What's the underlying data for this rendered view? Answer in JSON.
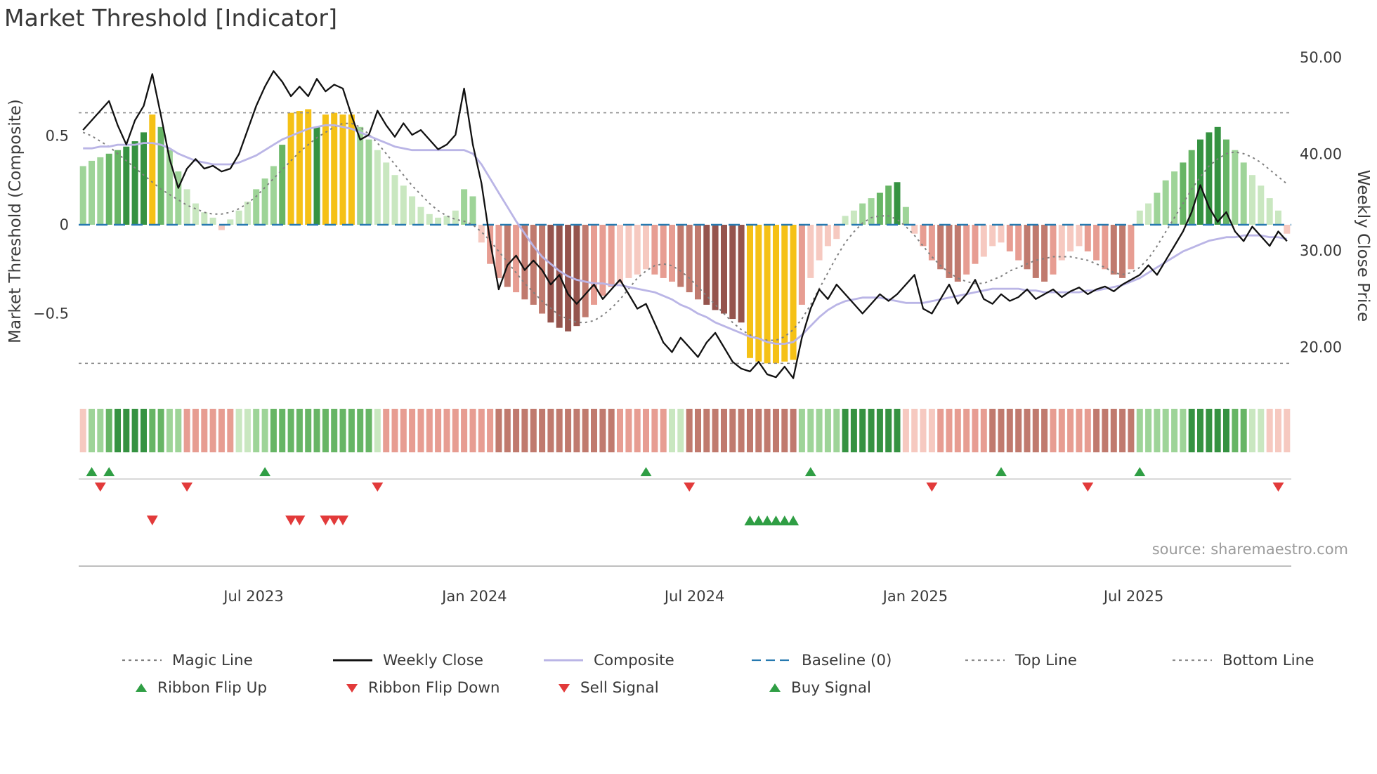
{
  "title": "Market Threshold [Indicator]",
  "source": "source: sharemaestro.com",
  "axes": {
    "left_label": "Market Threshold (Composite)",
    "right_label": "Weekly Close Price",
    "left_ticks": [
      {
        "label": "0.5",
        "value": 0.5
      },
      {
        "label": "0",
        "value": 0
      },
      {
        "label": "−0.5",
        "value": -0.5
      }
    ],
    "right_ticks": [
      {
        "label": "50.00",
        "value": 50
      },
      {
        "label": "40.00",
        "value": 40
      },
      {
        "label": "30.00",
        "value": 30
      },
      {
        "label": "20.00",
        "value": 20
      }
    ]
  },
  "legend": {
    "row1": [
      {
        "label": "Magic Line",
        "type": "dashed",
        "color": "#7f7f7f"
      },
      {
        "label": "Weekly Close",
        "type": "solid",
        "color": "#111111"
      },
      {
        "label": "Composite",
        "type": "solid",
        "color": "#bab5e6"
      },
      {
        "label": "Baseline (0)",
        "type": "dashed-long",
        "color": "#2679b0"
      },
      {
        "label": "Top Line",
        "type": "dashed",
        "color": "#8c8c8c"
      },
      {
        "label": "Bottom Line",
        "type": "dashed",
        "color": "#8c8c8c"
      }
    ],
    "row2": [
      {
        "label": "Ribbon Flip Up",
        "marker": "up",
        "color": "#2f9e44"
      },
      {
        "label": "Ribbon Flip Down",
        "marker": "down",
        "color": "#e23a3a"
      },
      {
        "label": "Sell Signal",
        "marker": "down",
        "color": "#e23a3a"
      },
      {
        "label": "Buy Signal",
        "marker": "up",
        "color": "#2f9e44"
      }
    ]
  },
  "colors": {
    "palette": {
      "g1": "#c9e7c0",
      "g2": "#9ed498",
      "g3": "#67b565",
      "g4": "#359241",
      "r1": "#f6c9c0",
      "r2": "#e79d92",
      "r3": "#c07a6e",
      "r4": "#95544d",
      "gold": "#f5c116"
    },
    "close": "#111111",
    "composite": "#bab5e6",
    "magic": "#7f7f7f",
    "guide": "#8c8c8c",
    "baseline": "#2679b0",
    "signal_green": "#2f9e44",
    "signal_red": "#e23a3a",
    "signal_axis": "#cccccc",
    "spine": "#aaaaaa"
  },
  "chart_data": {
    "type": "combo-bar-line",
    "frequency": "weekly",
    "n_weeks": 140,
    "x_range": [
      "Feb 2023",
      "Nov 2025"
    ],
    "left_ylim": [
      -0.95,
      0.95
    ],
    "right_ylim": [
      14,
      51
    ],
    "top_line": 0.63,
    "bottom_line": -0.78,
    "baseline": 0,
    "x_ticks": [
      {
        "label": "Jul 2023",
        "week": 19.7
      },
      {
        "label": "Jan 2024",
        "week": 45.2
      },
      {
        "label": "Jul 2024",
        "week": 70.6
      },
      {
        "label": "Jan 2025",
        "week": 96.1
      },
      {
        "label": "Jul 2025",
        "week": 121.3
      }
    ],
    "bars": {
      "name": "Market Threshold Composite (bars)",
      "values": [
        0.33,
        0.36,
        0.38,
        0.4,
        0.42,
        0.44,
        0.47,
        0.52,
        0.62,
        0.55,
        0.42,
        0.3,
        0.2,
        0.12,
        0.07,
        0.04,
        -0.03,
        0.03,
        0.08,
        0.13,
        0.2,
        0.26,
        0.33,
        0.45,
        0.63,
        0.64,
        0.65,
        0.55,
        0.62,
        0.63,
        0.62,
        0.62,
        0.55,
        0.48,
        0.42,
        0.35,
        0.28,
        0.22,
        0.16,
        0.1,
        0.06,
        0.04,
        0.05,
        0.08,
        0.2,
        0.16,
        -0.1,
        -0.22,
        -0.3,
        -0.35,
        -0.38,
        -0.42,
        -0.45,
        -0.5,
        -0.55,
        -0.58,
        -0.6,
        -0.57,
        -0.52,
        -0.45,
        -0.4,
        -0.35,
        -0.33,
        -0.3,
        -0.28,
        -0.25,
        -0.28,
        -0.3,
        -0.32,
        -0.35,
        -0.38,
        -0.42,
        -0.45,
        -0.48,
        -0.5,
        -0.53,
        -0.55,
        -0.75,
        -0.77,
        -0.78,
        -0.78,
        -0.77,
        -0.76,
        -0.45,
        -0.3,
        -0.2,
        -0.12,
        -0.08,
        0.05,
        0.08,
        0.12,
        0.15,
        0.18,
        0.22,
        0.24,
        0.1,
        -0.05,
        -0.12,
        -0.2,
        -0.25,
        -0.3,
        -0.32,
        -0.28,
        -0.22,
        -0.18,
        -0.12,
        -0.1,
        -0.15,
        -0.2,
        -0.25,
        -0.3,
        -0.32,
        -0.28,
        -0.2,
        -0.15,
        -0.12,
        -0.15,
        -0.2,
        -0.25,
        -0.28,
        -0.3,
        -0.25,
        0.08,
        0.12,
        0.18,
        0.25,
        0.3,
        0.35,
        0.42,
        0.48,
        0.52,
        0.55,
        0.48,
        0.42,
        0.35,
        0.28,
        0.22,
        0.15,
        0.08,
        -0.05
      ],
      "colors": [
        "g2",
        "g2",
        "g2",
        "g3",
        "g3",
        "g4",
        "g4",
        "g4",
        "gold",
        "g3",
        "g2",
        "g2",
        "g1",
        "g1",
        "g1",
        "g1",
        "r1",
        "g1",
        "g1",
        "g1",
        "g2",
        "g2",
        "g2",
        "g3",
        "gold",
        "gold",
        "gold",
        "g4",
        "gold",
        "gold",
        "gold",
        "gold",
        "g2",
        "g2",
        "g1",
        "g1",
        "g1",
        "g1",
        "g1",
        "g1",
        "g1",
        "g1",
        "g1",
        "g1",
        "g2",
        "g2",
        "r1",
        "r2",
        "r2",
        "r3",
        "r2",
        "r3",
        "r3",
        "r3",
        "r4",
        "r4",
        "r4",
        "r4",
        "r3",
        "r2",
        "r2",
        "r2",
        "r1",
        "r1",
        "r1",
        "r1",
        "r2",
        "r2",
        "r2",
        "r3",
        "r3",
        "r3",
        "r4",
        "r4",
        "r4",
        "r4",
        "r4",
        "gold",
        "gold",
        "gold",
        "gold",
        "gold",
        "gold",
        "r2",
        "r1",
        "r1",
        "r1",
        "r1",
        "g1",
        "g1",
        "g2",
        "g2",
        "g3",
        "g3",
        "g4",
        "g2",
        "r1",
        "r2",
        "r2",
        "r3",
        "r3",
        "r3",
        "r2",
        "r2",
        "r1",
        "r1",
        "r1",
        "r2",
        "r2",
        "r3",
        "r3",
        "r3",
        "r2",
        "r1",
        "r1",
        "r1",
        "r2",
        "r2",
        "r2",
        "r3",
        "r3",
        "r2",
        "g1",
        "g1",
        "g2",
        "g2",
        "g2",
        "g3",
        "g3",
        "g4",
        "g4",
        "g4",
        "g3",
        "g2",
        "g2",
        "g1",
        "g1",
        "g1",
        "g1",
        "r1"
      ]
    },
    "weekly_close": [
      42.5,
      43.5,
      44.5,
      45.5,
      43.0,
      41.0,
      43.5,
      45.0,
      48.3,
      44.0,
      39.5,
      36.5,
      38.5,
      39.5,
      38.5,
      38.8,
      38.2,
      38.5,
      40.0,
      42.5,
      45.0,
      47.0,
      48.6,
      47.5,
      46.0,
      47.0,
      46.0,
      47.8,
      46.5,
      47.2,
      46.8,
      44.0,
      41.5,
      42.0,
      44.5,
      43.0,
      41.8,
      43.2,
      42.0,
      42.5,
      41.5,
      40.5,
      41.0,
      42.0,
      46.8,
      41.0,
      37.0,
      31.0,
      26.0,
      28.5,
      29.5,
      28.0,
      29.0,
      28.0,
      26.5,
      27.5,
      25.5,
      24.5,
      25.5,
      26.5,
      25.0,
      26.0,
      27.0,
      25.5,
      24.0,
      24.5,
      22.5,
      20.5,
      19.5,
      21.0,
      20.0,
      19.0,
      20.5,
      21.5,
      20.0,
      18.5,
      17.8,
      17.5,
      18.5,
      17.2,
      16.9,
      18.0,
      16.8,
      21.0,
      24.0,
      26.0,
      25.0,
      26.5,
      25.5,
      24.5,
      23.5,
      24.5,
      25.5,
      24.8,
      25.5,
      26.5,
      27.5,
      24.0,
      23.5,
      25.0,
      26.5,
      24.5,
      25.5,
      27.0,
      25.0,
      24.5,
      25.5,
      24.8,
      25.2,
      26.0,
      25.0,
      25.5,
      26.0,
      25.2,
      25.8,
      26.2,
      25.5,
      26.0,
      26.3,
      25.8,
      26.5,
      27.0,
      27.5,
      28.5,
      27.5,
      29.0,
      30.5,
      32.0,
      34.0,
      36.8,
      34.5,
      33.0,
      34.0,
      32.0,
      31.0,
      32.5,
      31.5,
      30.5,
      32.0,
      31.0
    ],
    "composite_line": [
      0.43,
      0.43,
      0.44,
      0.44,
      0.45,
      0.45,
      0.45,
      0.46,
      0.46,
      0.45,
      0.43,
      0.4,
      0.38,
      0.36,
      0.35,
      0.34,
      0.34,
      0.34,
      0.35,
      0.37,
      0.39,
      0.42,
      0.45,
      0.48,
      0.5,
      0.52,
      0.54,
      0.55,
      0.56,
      0.56,
      0.55,
      0.54,
      0.52,
      0.5,
      0.48,
      0.46,
      0.44,
      0.43,
      0.42,
      0.42,
      0.42,
      0.42,
      0.42,
      0.42,
      0.42,
      0.4,
      0.34,
      0.26,
      0.18,
      0.1,
      0.02,
      -0.05,
      -0.12,
      -0.18,
      -0.22,
      -0.26,
      -0.29,
      -0.31,
      -0.32,
      -0.33,
      -0.33,
      -0.34,
      -0.34,
      -0.35,
      -0.36,
      -0.37,
      -0.38,
      -0.4,
      -0.42,
      -0.45,
      -0.47,
      -0.5,
      -0.52,
      -0.55,
      -0.57,
      -0.59,
      -0.61,
      -0.63,
      -0.64,
      -0.66,
      -0.67,
      -0.67,
      -0.66,
      -0.62,
      -0.57,
      -0.52,
      -0.48,
      -0.45,
      -0.43,
      -0.42,
      -0.41,
      -0.41,
      -0.41,
      -0.42,
      -0.43,
      -0.44,
      -0.44,
      -0.44,
      -0.43,
      -0.42,
      -0.41,
      -0.4,
      -0.39,
      -0.38,
      -0.37,
      -0.36,
      -0.36,
      -0.36,
      -0.36,
      -0.37,
      -0.37,
      -0.38,
      -0.38,
      -0.38,
      -0.38,
      -0.38,
      -0.37,
      -0.37,
      -0.36,
      -0.35,
      -0.34,
      -0.32,
      -0.3,
      -0.27,
      -0.24,
      -0.21,
      -0.18,
      -0.15,
      -0.13,
      -0.11,
      -0.09,
      -0.08,
      -0.07,
      -0.07,
      -0.06,
      -0.06,
      -0.06,
      -0.07,
      -0.07,
      -0.08
    ],
    "magic_line": [
      0.52,
      0.5,
      0.47,
      0.44,
      0.4,
      0.36,
      0.32,
      0.28,
      0.24,
      0.2,
      0.17,
      0.14,
      0.11,
      0.09,
      0.07,
      0.06,
      0.06,
      0.07,
      0.09,
      0.12,
      0.16,
      0.21,
      0.26,
      0.31,
      0.36,
      0.41,
      0.45,
      0.49,
      0.52,
      0.55,
      0.57,
      0.57,
      0.55,
      0.51,
      0.46,
      0.4,
      0.34,
      0.28,
      0.22,
      0.17,
      0.12,
      0.08,
      0.05,
      0.03,
      0.02,
      0.0,
      -0.04,
      -0.09,
      -0.15,
      -0.21,
      -0.27,
      -0.33,
      -0.38,
      -0.43,
      -0.47,
      -0.51,
      -0.53,
      -0.55,
      -0.55,
      -0.54,
      -0.51,
      -0.47,
      -0.42,
      -0.36,
      -0.3,
      -0.26,
      -0.23,
      -0.22,
      -0.23,
      -0.26,
      -0.3,
      -0.35,
      -0.4,
      -0.45,
      -0.5,
      -0.55,
      -0.59,
      -0.62,
      -0.64,
      -0.65,
      -0.65,
      -0.63,
      -0.59,
      -0.53,
      -0.45,
      -0.36,
      -0.27,
      -0.18,
      -0.1,
      -0.04,
      0.01,
      0.04,
      0.05,
      0.05,
      0.03,
      -0.01,
      -0.06,
      -0.12,
      -0.18,
      -0.23,
      -0.27,
      -0.3,
      -0.32,
      -0.33,
      -0.33,
      -0.31,
      -0.29,
      -0.26,
      -0.24,
      -0.22,
      -0.2,
      -0.19,
      -0.18,
      -0.18,
      -0.18,
      -0.19,
      -0.2,
      -0.22,
      -0.24,
      -0.27,
      -0.28,
      -0.27,
      -0.24,
      -0.19,
      -0.12,
      -0.04,
      0.04,
      0.12,
      0.2,
      0.27,
      0.33,
      0.37,
      0.4,
      0.41,
      0.4,
      0.38,
      0.35,
      0.31,
      0.27,
      0.23
    ],
    "ribbon": [
      "r1",
      "g2",
      "g2",
      "g3",
      "g4",
      "g4",
      "g4",
      "g4",
      "g3",
      "g3",
      "g2",
      "g2",
      "r2",
      "r2",
      "r2",
      "r2",
      "r2",
      "r2",
      "g1",
      "g1",
      "g2",
      "g2",
      "g3",
      "g3",
      "g3",
      "g3",
      "g3",
      "g3",
      "g3",
      "g3",
      "g3",
      "g3",
      "g3",
      "g3",
      "g1",
      "r2",
      "r2",
      "r2",
      "r2",
      "r2",
      "r2",
      "r2",
      "r2",
      "r2",
      "r2",
      "r2",
      "r2",
      "r2",
      "r3",
      "r3",
      "r3",
      "r3",
      "r3",
      "r3",
      "r3",
      "r3",
      "r3",
      "r3",
      "r3",
      "r3",
      "r3",
      "r3",
      "r2",
      "r2",
      "r2",
      "r2",
      "r2",
      "r2",
      "g1",
      "g1",
      "r3",
      "r3",
      "r3",
      "r3",
      "r3",
      "r3",
      "r3",
      "r3",
      "r3",
      "r3",
      "r3",
      "r3",
      "r3",
      "g2",
      "g2",
      "g2",
      "g2",
      "g2",
      "g4",
      "g4",
      "g4",
      "g4",
      "g4",
      "g4",
      "g4",
      "r1",
      "r1",
      "r1",
      "r1",
      "r2",
      "r2",
      "r2",
      "r2",
      "r2",
      "r2",
      "r3",
      "r3",
      "r3",
      "r3",
      "r3",
      "r3",
      "r3",
      "r2",
      "r2",
      "r2",
      "r2",
      "r2",
      "r3",
      "r3",
      "r3",
      "r3",
      "r3",
      "g2",
      "g2",
      "g2",
      "g2",
      "g2",
      "g2",
      "g4",
      "g4",
      "g4",
      "g4",
      "g4",
      "g3",
      "g3",
      "g1",
      "g1",
      "r1",
      "r1",
      "r1"
    ],
    "signals": {
      "ribbon_flip_up_weeks": [
        1,
        3,
        21,
        65,
        84,
        106,
        122
      ],
      "ribbon_flip_down_weeks": [
        2,
        12,
        34,
        70,
        98,
        116,
        138
      ],
      "sell_weeks": [
        8,
        24,
        25,
        28,
        29,
        30
      ],
      "buy_weeks": [
        77,
        78,
        79,
        80,
        81,
        82
      ]
    }
  }
}
